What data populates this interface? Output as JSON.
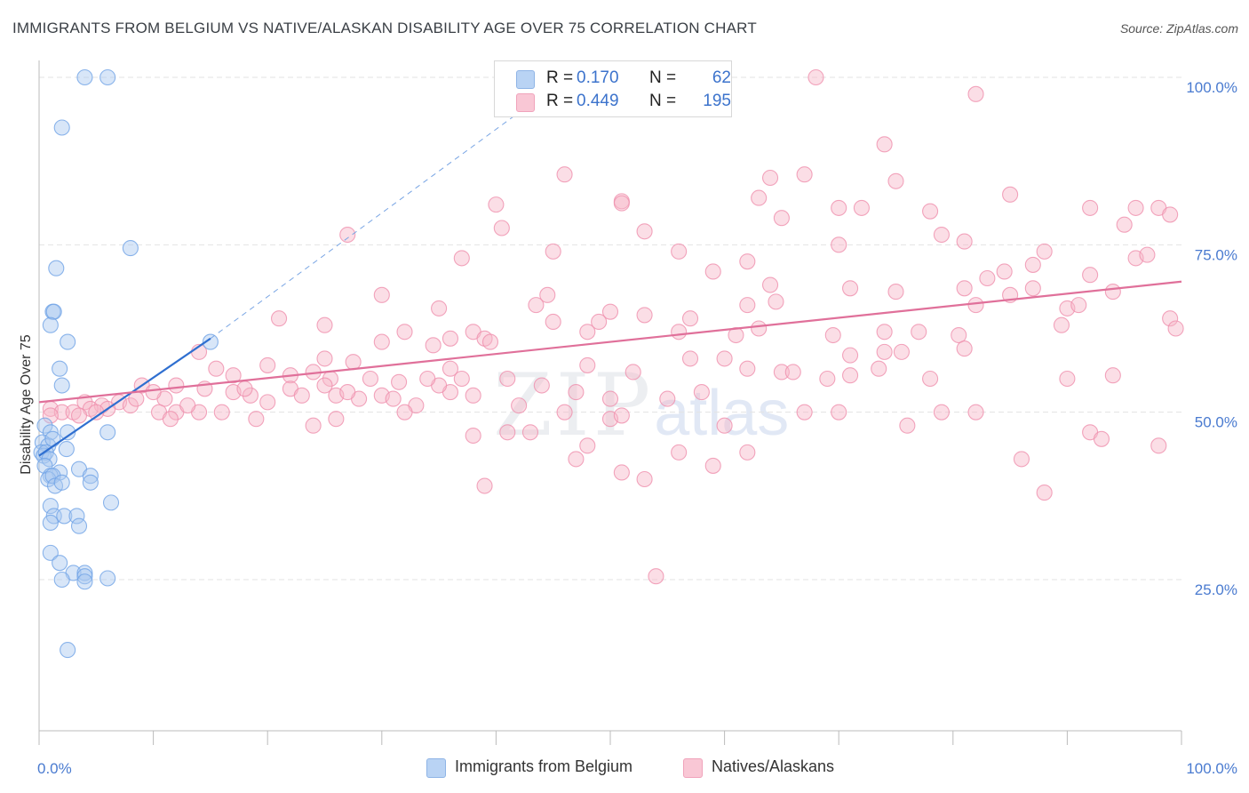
{
  "title": "IMMIGRANTS FROM BELGIUM VS NATIVE/ALASKAN DISABILITY AGE OVER 75 CORRELATION CHART",
  "source": "Source: ZipAtlas.com",
  "watermark": {
    "zip": "ZIP",
    "atlas": "atlas"
  },
  "stats": [
    {
      "r_label": "R =",
      "r_value": "0.170",
      "n_label": "N =",
      "n_value": "62",
      "color": "#a8c8f0"
    },
    {
      "r_label": "R =",
      "r_value": "0.449",
      "n_label": "N =",
      "n_value": "195",
      "color": "#f7b6c8"
    }
  ],
  "legend": [
    {
      "label": "Immigrants from Belgium",
      "color": "#a8c8f0"
    },
    {
      "label": "Natives/Alaskans",
      "color": "#f7b6c8"
    }
  ],
  "chart_data": {
    "type": "scatter",
    "title": "IMMIGRANTS FROM BELGIUM VS NATIVE/ALASKAN DISABILITY AGE OVER 75 CORRELATION CHART",
    "xlabel": "",
    "ylabel": "Disability Age Over 75",
    "xlim": [
      0,
      100
    ],
    "ylim": [
      0,
      105
    ],
    "x_ticks": [
      "0.0%",
      "100.0%"
    ],
    "y_ticks": [
      {
        "value": 25,
        "label": "25.0%"
      },
      {
        "value": 50,
        "label": "50.0%"
      },
      {
        "value": 75,
        "label": "75.0%"
      },
      {
        "value": 100,
        "label": "100.0%"
      }
    ],
    "grid": true,
    "series": [
      {
        "name": "Immigrants from Belgium",
        "color": "#6fa3e6",
        "fill": "#a8c8f0",
        "line_color": "#2f6fd0",
        "trend": {
          "x0": 0,
          "y0": 43.5,
          "x1": 15,
          "y1": 61,
          "dash_to_x": 43,
          "dash_to_y": 96
        },
        "points": [
          [
            4,
            100
          ],
          [
            6,
            100
          ],
          [
            2,
            92.5
          ],
          [
            8,
            74.5
          ],
          [
            1.5,
            71.5
          ],
          [
            1.2,
            65
          ],
          [
            1.3,
            65
          ],
          [
            1,
            63
          ],
          [
            2.5,
            60.5
          ],
          [
            1.8,
            56.5
          ],
          [
            2,
            54
          ],
          [
            15,
            60.5
          ],
          [
            0.5,
            48
          ],
          [
            1,
            47
          ],
          [
            2.5,
            47
          ],
          [
            6,
            47
          ],
          [
            0.3,
            45.5
          ],
          [
            0.8,
            45
          ],
          [
            1.2,
            46
          ],
          [
            0.2,
            44
          ],
          [
            0.4,
            43.5
          ],
          [
            0.6,
            44
          ],
          [
            0.9,
            43
          ],
          [
            2.4,
            44.5
          ],
          [
            0.5,
            42
          ],
          [
            1.8,
            41
          ],
          [
            3.5,
            41.5
          ],
          [
            4.5,
            40.5
          ],
          [
            1,
            40.5
          ],
          [
            0.8,
            40
          ],
          [
            1.2,
            40.5
          ],
          [
            1.4,
            39
          ],
          [
            2,
            39.5
          ],
          [
            4.5,
            39.5
          ],
          [
            6.3,
            36.5
          ],
          [
            1,
            36
          ],
          [
            1.3,
            34.5
          ],
          [
            2.2,
            34.5
          ],
          [
            3.3,
            34.5
          ],
          [
            3.5,
            33
          ],
          [
            1,
            33.5
          ],
          [
            1,
            29
          ],
          [
            1.8,
            27.5
          ],
          [
            3,
            26
          ],
          [
            4,
            26
          ],
          [
            4,
            25.5
          ],
          [
            2,
            25
          ],
          [
            4,
            24.7
          ],
          [
            6,
            25.2
          ],
          [
            2.5,
            14.5
          ]
        ]
      },
      {
        "name": "Natives/Alaskans",
        "color": "#ef8fac",
        "fill": "#f7b6c8",
        "line_color": "#e0709a",
        "trend": {
          "x0": 0,
          "y0": 51.5,
          "x1": 100,
          "y1": 69.5
        },
        "points": [
          [
            68,
            100
          ],
          [
            82,
            97.5
          ],
          [
            74,
            90
          ],
          [
            46,
            85.5
          ],
          [
            67,
            85.5
          ],
          [
            64,
            85
          ],
          [
            75,
            84.5
          ],
          [
            85,
            82.5
          ],
          [
            63,
            82
          ],
          [
            51,
            81.5
          ],
          [
            51,
            81.2
          ],
          [
            40,
            81
          ],
          [
            70,
            80.5
          ],
          [
            72,
            80.5
          ],
          [
            92,
            80.5
          ],
          [
            96,
            80.5
          ],
          [
            98,
            80.5
          ],
          [
            99,
            79.5
          ],
          [
            78,
            80
          ],
          [
            65,
            79
          ],
          [
            40.5,
            77.5
          ],
          [
            53,
            77
          ],
          [
            79,
            76.5
          ],
          [
            27,
            76.5
          ],
          [
            81,
            75.5
          ],
          [
            70,
            75
          ],
          [
            95,
            78
          ],
          [
            56,
            74
          ],
          [
            45,
            74
          ],
          [
            37,
            73
          ],
          [
            88,
            74
          ],
          [
            62,
            72.5
          ],
          [
            96,
            73
          ],
          [
            97,
            73.5
          ],
          [
            87,
            72
          ],
          [
            59,
            71
          ],
          [
            84.5,
            71
          ],
          [
            83,
            70
          ],
          [
            92,
            70.5
          ],
          [
            71,
            68.5
          ],
          [
            75,
            68
          ],
          [
            81,
            68.5
          ],
          [
            64,
            69
          ],
          [
            94,
            68
          ],
          [
            30,
            67.5
          ],
          [
            44.5,
            67.5
          ],
          [
            85,
            67.5
          ],
          [
            43.5,
            66
          ],
          [
            35,
            65.5
          ],
          [
            82,
            66
          ],
          [
            64.5,
            66.5
          ],
          [
            87,
            68.5
          ],
          [
            62,
            66
          ],
          [
            90,
            65.5
          ],
          [
            50,
            65
          ],
          [
            53,
            64.5
          ],
          [
            91,
            66
          ],
          [
            99,
            64
          ],
          [
            21,
            64
          ],
          [
            57,
            64
          ],
          [
            49,
            63.5
          ],
          [
            89.5,
            63
          ],
          [
            25,
            63
          ],
          [
            45,
            63.5
          ],
          [
            48,
            62
          ],
          [
            38,
            62
          ],
          [
            32,
            62
          ],
          [
            74,
            62
          ],
          [
            77,
            62
          ],
          [
            61,
            61.5
          ],
          [
            99.5,
            62.5
          ],
          [
            80.5,
            61.5
          ],
          [
            69.5,
            61.5
          ],
          [
            39,
            61
          ],
          [
            36,
            61
          ],
          [
            39.5,
            60.5
          ],
          [
            30,
            60.5
          ],
          [
            34.5,
            60
          ],
          [
            81,
            59.5
          ],
          [
            75.5,
            59
          ],
          [
            71,
            58.5
          ],
          [
            74,
            59
          ],
          [
            14,
            59
          ],
          [
            57,
            58
          ],
          [
            60,
            58
          ],
          [
            25,
            58
          ],
          [
            27.5,
            57.5
          ],
          [
            20,
            57
          ],
          [
            36,
            56.5
          ],
          [
            73.5,
            56.5
          ],
          [
            62,
            56.5
          ],
          [
            65,
            56
          ],
          [
            71,
            55.5
          ],
          [
            90,
            55
          ],
          [
            78,
            55
          ],
          [
            94,
            55.5
          ],
          [
            15.5,
            56.5
          ],
          [
            22,
            55.5
          ],
          [
            17,
            55.5
          ],
          [
            25.5,
            55
          ],
          [
            25,
            54
          ],
          [
            9,
            54
          ],
          [
            14.5,
            53.5
          ],
          [
            22,
            53.5
          ],
          [
            17,
            53
          ],
          [
            23,
            52.5
          ],
          [
            26,
            52.5
          ],
          [
            18.5,
            52.5
          ],
          [
            28,
            52
          ],
          [
            30,
            52.5
          ],
          [
            11,
            52
          ],
          [
            7,
            51.5
          ],
          [
            4,
            51.5
          ],
          [
            5.5,
            51
          ],
          [
            6,
            50.5
          ],
          [
            8,
            51
          ],
          [
            1,
            50.5
          ],
          [
            2,
            50
          ],
          [
            3,
            50
          ],
          [
            4.5,
            50.5
          ],
          [
            5,
            50
          ],
          [
            3.5,
            49.5
          ],
          [
            10.5,
            50
          ],
          [
            12,
            50
          ],
          [
            11.5,
            49
          ],
          [
            14,
            50
          ],
          [
            1,
            49.5
          ],
          [
            19,
            49
          ],
          [
            26,
            49
          ],
          [
            24,
            48
          ],
          [
            31,
            52
          ],
          [
            27,
            53
          ],
          [
            33,
            51
          ],
          [
            36,
            53
          ],
          [
            37,
            55
          ],
          [
            41,
            55
          ],
          [
            44,
            54
          ],
          [
            47,
            53
          ],
          [
            50,
            52
          ],
          [
            55,
            52
          ],
          [
            58,
            53
          ],
          [
            60,
            48
          ],
          [
            67,
            50
          ],
          [
            70,
            50
          ],
          [
            76,
            48
          ],
          [
            79,
            50
          ],
          [
            82,
            50
          ],
          [
            86,
            43
          ],
          [
            88,
            38
          ],
          [
            92,
            47
          ],
          [
            93,
            46
          ],
          [
            98,
            45
          ],
          [
            12,
            54
          ],
          [
            8.5,
            52
          ],
          [
            10,
            53
          ],
          [
            13,
            51
          ],
          [
            16,
            50
          ],
          [
            18,
            53.5
          ],
          [
            20,
            51.5
          ],
          [
            24,
            56
          ],
          [
            29,
            55
          ],
          [
            31.5,
            54.5
          ],
          [
            35,
            54
          ],
          [
            38,
            52.5
          ],
          [
            42,
            51
          ],
          [
            46,
            50
          ],
          [
            48,
            45
          ],
          [
            51,
            41
          ],
          [
            53,
            40
          ],
          [
            56,
            44
          ],
          [
            59,
            42
          ],
          [
            62,
            44
          ],
          [
            39,
            39
          ],
          [
            54,
            25.5
          ],
          [
            50,
            49
          ],
          [
            51,
            49.5
          ],
          [
            43,
            47
          ],
          [
            47,
            43
          ],
          [
            38,
            46.5
          ],
          [
            41,
            47
          ],
          [
            32,
            50
          ],
          [
            34,
            55
          ],
          [
            48,
            57
          ],
          [
            52,
            56
          ],
          [
            56,
            62
          ],
          [
            63,
            62.5
          ],
          [
            66,
            56
          ],
          [
            69,
            55
          ]
        ]
      }
    ]
  }
}
